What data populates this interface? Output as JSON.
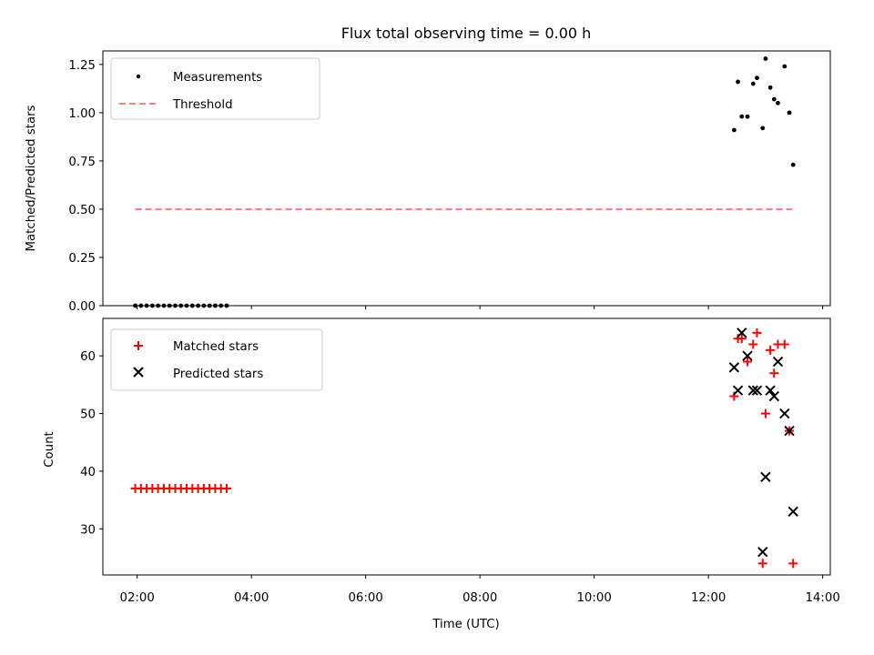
{
  "title": "Flux total observing time = 0.00 h",
  "chart_data": [
    {
      "type": "scatter",
      "panel": "top",
      "ylabel": "Matched/Predicted stars",
      "ylim": [
        0,
        1.32
      ],
      "yticks": [
        "0.00",
        "0.25",
        "0.50",
        "0.75",
        "1.00",
        "1.25"
      ],
      "grid": false,
      "legend_placement": "top-left",
      "series": [
        {
          "name": "Measurements",
          "kind": "dots",
          "color": "#000000",
          "x": [
            "01:58",
            "02:04",
            "02:10",
            "02:16",
            "02:22",
            "02:28",
            "02:34",
            "02:40",
            "02:46",
            "02:52",
            "02:58",
            "03:04",
            "03:10",
            "03:16",
            "03:22",
            "03:28",
            "03:34",
            "12:27",
            "12:31",
            "12:35",
            "12:41",
            "12:47",
            "12:51",
            "12:57",
            "13:00",
            "13:05",
            "13:09",
            "13:13",
            "13:20",
            "13:25",
            "13:29"
          ],
          "y": [
            0,
            0,
            0,
            0,
            0,
            0,
            0,
            0,
            0,
            0,
            0,
            0,
            0,
            0,
            0,
            0,
            0,
            0.91,
            1.16,
            0.98,
            0.98,
            1.15,
            1.18,
            0.92,
            1.28,
            1.13,
            1.07,
            1.05,
            1.24,
            1.0,
            0.73
          ]
        },
        {
          "name": "Threshold",
          "kind": "dashed-line",
          "color": "#ff7f7f",
          "x": [
            "01:58",
            "13:29"
          ],
          "y": [
            0.5,
            0.5
          ]
        }
      ]
    },
    {
      "type": "scatter",
      "panel": "bottom",
      "xlabel": "Time (UTC)",
      "ylabel": "Count",
      "ylim": [
        22,
        66.5
      ],
      "yticks": [
        "30",
        "40",
        "50",
        "60"
      ],
      "xticks": [
        "02:00",
        "04:00",
        "06:00",
        "08:00",
        "10:00",
        "12:00",
        "14:00"
      ],
      "xlim": [
        "01:24",
        "14:08"
      ],
      "grid": false,
      "legend_placement": "top-left",
      "series": [
        {
          "name": "Matched stars",
          "marker": "plus",
          "color": "#ff0000",
          "x": [
            "01:58",
            "02:04",
            "02:10",
            "02:16",
            "02:22",
            "02:28",
            "02:34",
            "02:40",
            "02:46",
            "02:52",
            "02:58",
            "03:04",
            "03:10",
            "03:16",
            "03:22",
            "03:28",
            "03:34",
            "12:27",
            "12:31",
            "12:35",
            "12:41",
            "12:47",
            "12:51",
            "12:57",
            "13:00",
            "13:05",
            "13:09",
            "13:13",
            "13:20",
            "13:25",
            "13:29"
          ],
          "y": [
            37,
            37,
            37,
            37,
            37,
            37,
            37,
            37,
            37,
            37,
            37,
            37,
            37,
            37,
            37,
            37,
            37,
            53,
            63,
            63,
            59,
            62,
            64,
            24,
            50,
            61,
            57,
            62,
            62,
            47,
            24
          ]
        },
        {
          "name": "Predicted stars",
          "marker": "x",
          "color": "#000000",
          "x": [
            "12:27",
            "12:31",
            "12:35",
            "12:41",
            "12:47",
            "12:51",
            "12:57",
            "13:00",
            "13:05",
            "13:09",
            "13:13",
            "13:20",
            "13:25",
            "13:29"
          ],
          "y": [
            58,
            54,
            64,
            60,
            54,
            54,
            26,
            39,
            54,
            53,
            59,
            50,
            47,
            33
          ]
        }
      ]
    }
  ]
}
